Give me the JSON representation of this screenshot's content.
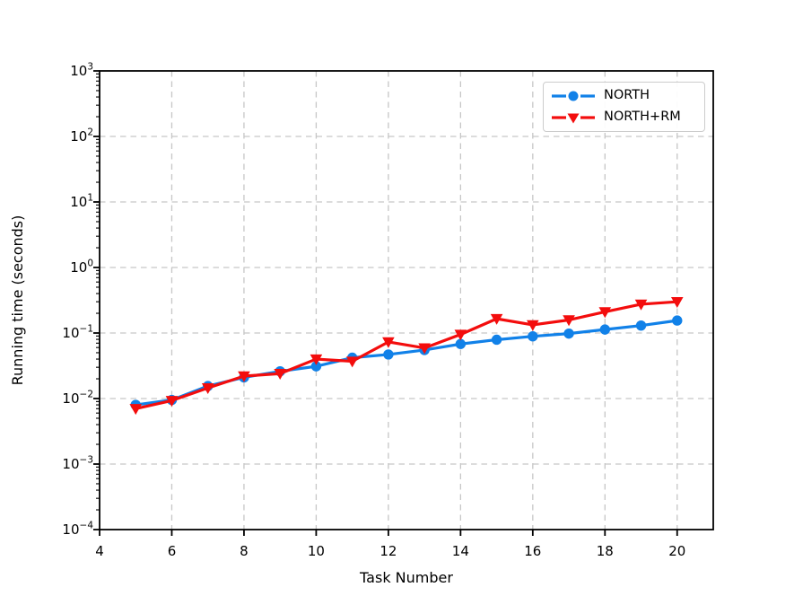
{
  "chart_data": {
    "type": "line",
    "title": "",
    "xlabel": "Task Number",
    "ylabel": "Running time (seconds)",
    "x": [
      5,
      6,
      7,
      8,
      9,
      10,
      11,
      12,
      13,
      14,
      15,
      16,
      17,
      18,
      19,
      20
    ],
    "series": [
      {
        "name": "NORTH",
        "color": "#1181e8",
        "marker": "circle",
        "linestyle": "solid",
        "values": [
          0.008,
          0.0095,
          0.0155,
          0.021,
          0.026,
          0.031,
          0.042,
          0.047,
          0.055,
          0.068,
          0.079,
          0.089,
          0.098,
          0.113,
          0.13,
          0.155
        ]
      },
      {
        "name": "NORTH+RM",
        "color": "#f30d0d",
        "marker": "triangle-down",
        "linestyle": "solid",
        "values": [
          0.007,
          0.0093,
          0.0145,
          0.022,
          0.024,
          0.04,
          0.037,
          0.073,
          0.059,
          0.095,
          0.165,
          0.133,
          0.158,
          0.21,
          0.275,
          0.3
        ]
      }
    ],
    "xlim": [
      4,
      21
    ],
    "ylim": [
      0.0001,
      1000
    ],
    "yscale": "log",
    "x_major_ticks": [
      4,
      6,
      8,
      10,
      12,
      14,
      16,
      18,
      20
    ],
    "y_tick_exponents": [
      3,
      2,
      1,
      0,
      -1,
      -2,
      -3,
      -4
    ],
    "grid": true,
    "grid_style": "dashed",
    "legend_position": "upper right",
    "style": {
      "grid_color": "#c6c6c6",
      "axis_color": "#000000",
      "background": "#ffffff",
      "legend_border": "#cccccc",
      "tick_label_color": "#000000"
    }
  }
}
